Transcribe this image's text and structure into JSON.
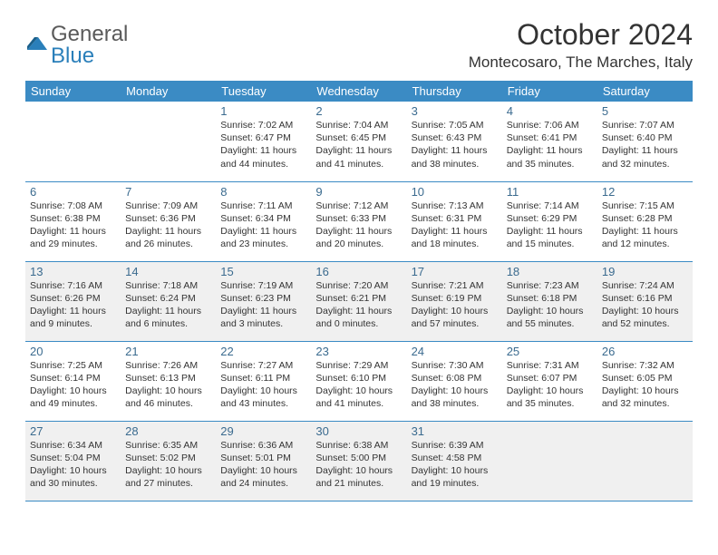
{
  "logo": {
    "text_general": "General",
    "text_blue": "Blue"
  },
  "header": {
    "month_title": "October 2024",
    "location": "Montecosaro, The Marches, Italy"
  },
  "styling": {
    "header_bg": "#3b8bc4",
    "header_fg": "#ffffff",
    "border_color": "#3b8bc4",
    "shaded_bg": "#f0f0f0",
    "daynum_color": "#3b6b8f",
    "text_color": "#333333",
    "font_family": "Arial",
    "title_fontsize": 32,
    "location_fontsize": 17,
    "th_fontsize": 13,
    "daynum_fontsize": 13,
    "body_fontsize": 10.5
  },
  "columns": [
    "Sunday",
    "Monday",
    "Tuesday",
    "Wednesday",
    "Thursday",
    "Friday",
    "Saturday"
  ],
  "weeks": [
    {
      "shaded": false,
      "days": [
        null,
        null,
        {
          "num": "1",
          "sunrise": "7:02 AM",
          "sunset": "6:47 PM",
          "daylight": "11 hours and 44 minutes."
        },
        {
          "num": "2",
          "sunrise": "7:04 AM",
          "sunset": "6:45 PM",
          "daylight": "11 hours and 41 minutes."
        },
        {
          "num": "3",
          "sunrise": "7:05 AM",
          "sunset": "6:43 PM",
          "daylight": "11 hours and 38 minutes."
        },
        {
          "num": "4",
          "sunrise": "7:06 AM",
          "sunset": "6:41 PM",
          "daylight": "11 hours and 35 minutes."
        },
        {
          "num": "5",
          "sunrise": "7:07 AM",
          "sunset": "6:40 PM",
          "daylight": "11 hours and 32 minutes."
        }
      ]
    },
    {
      "shaded": false,
      "days": [
        {
          "num": "6",
          "sunrise": "7:08 AM",
          "sunset": "6:38 PM",
          "daylight": "11 hours and 29 minutes."
        },
        {
          "num": "7",
          "sunrise": "7:09 AM",
          "sunset": "6:36 PM",
          "daylight": "11 hours and 26 minutes."
        },
        {
          "num": "8",
          "sunrise": "7:11 AM",
          "sunset": "6:34 PM",
          "daylight": "11 hours and 23 minutes."
        },
        {
          "num": "9",
          "sunrise": "7:12 AM",
          "sunset": "6:33 PM",
          "daylight": "11 hours and 20 minutes."
        },
        {
          "num": "10",
          "sunrise": "7:13 AM",
          "sunset": "6:31 PM",
          "daylight": "11 hours and 18 minutes."
        },
        {
          "num": "11",
          "sunrise": "7:14 AM",
          "sunset": "6:29 PM",
          "daylight": "11 hours and 15 minutes."
        },
        {
          "num": "12",
          "sunrise": "7:15 AM",
          "sunset": "6:28 PM",
          "daylight": "11 hours and 12 minutes."
        }
      ]
    },
    {
      "shaded": true,
      "days": [
        {
          "num": "13",
          "sunrise": "7:16 AM",
          "sunset": "6:26 PM",
          "daylight": "11 hours and 9 minutes."
        },
        {
          "num": "14",
          "sunrise": "7:18 AM",
          "sunset": "6:24 PM",
          "daylight": "11 hours and 6 minutes."
        },
        {
          "num": "15",
          "sunrise": "7:19 AM",
          "sunset": "6:23 PM",
          "daylight": "11 hours and 3 minutes."
        },
        {
          "num": "16",
          "sunrise": "7:20 AM",
          "sunset": "6:21 PM",
          "daylight": "11 hours and 0 minutes."
        },
        {
          "num": "17",
          "sunrise": "7:21 AM",
          "sunset": "6:19 PM",
          "daylight": "10 hours and 57 minutes."
        },
        {
          "num": "18",
          "sunrise": "7:23 AM",
          "sunset": "6:18 PM",
          "daylight": "10 hours and 55 minutes."
        },
        {
          "num": "19",
          "sunrise": "7:24 AM",
          "sunset": "6:16 PM",
          "daylight": "10 hours and 52 minutes."
        }
      ]
    },
    {
      "shaded": false,
      "days": [
        {
          "num": "20",
          "sunrise": "7:25 AM",
          "sunset": "6:14 PM",
          "daylight": "10 hours and 49 minutes."
        },
        {
          "num": "21",
          "sunrise": "7:26 AM",
          "sunset": "6:13 PM",
          "daylight": "10 hours and 46 minutes."
        },
        {
          "num": "22",
          "sunrise": "7:27 AM",
          "sunset": "6:11 PM",
          "daylight": "10 hours and 43 minutes."
        },
        {
          "num": "23",
          "sunrise": "7:29 AM",
          "sunset": "6:10 PM",
          "daylight": "10 hours and 41 minutes."
        },
        {
          "num": "24",
          "sunrise": "7:30 AM",
          "sunset": "6:08 PM",
          "daylight": "10 hours and 38 minutes."
        },
        {
          "num": "25",
          "sunrise": "7:31 AM",
          "sunset": "6:07 PM",
          "daylight": "10 hours and 35 minutes."
        },
        {
          "num": "26",
          "sunrise": "7:32 AM",
          "sunset": "6:05 PM",
          "daylight": "10 hours and 32 minutes."
        }
      ]
    },
    {
      "shaded": true,
      "days": [
        {
          "num": "27",
          "sunrise": "6:34 AM",
          "sunset": "5:04 PM",
          "daylight": "10 hours and 30 minutes."
        },
        {
          "num": "28",
          "sunrise": "6:35 AM",
          "sunset": "5:02 PM",
          "daylight": "10 hours and 27 minutes."
        },
        {
          "num": "29",
          "sunrise": "6:36 AM",
          "sunset": "5:01 PM",
          "daylight": "10 hours and 24 minutes."
        },
        {
          "num": "30",
          "sunrise": "6:38 AM",
          "sunset": "5:00 PM",
          "daylight": "10 hours and 21 minutes."
        },
        {
          "num": "31",
          "sunrise": "6:39 AM",
          "sunset": "4:58 PM",
          "daylight": "10 hours and 19 minutes."
        },
        null,
        null
      ]
    }
  ],
  "labels": {
    "sunrise": "Sunrise:",
    "sunset": "Sunset:",
    "daylight": "Daylight:"
  }
}
